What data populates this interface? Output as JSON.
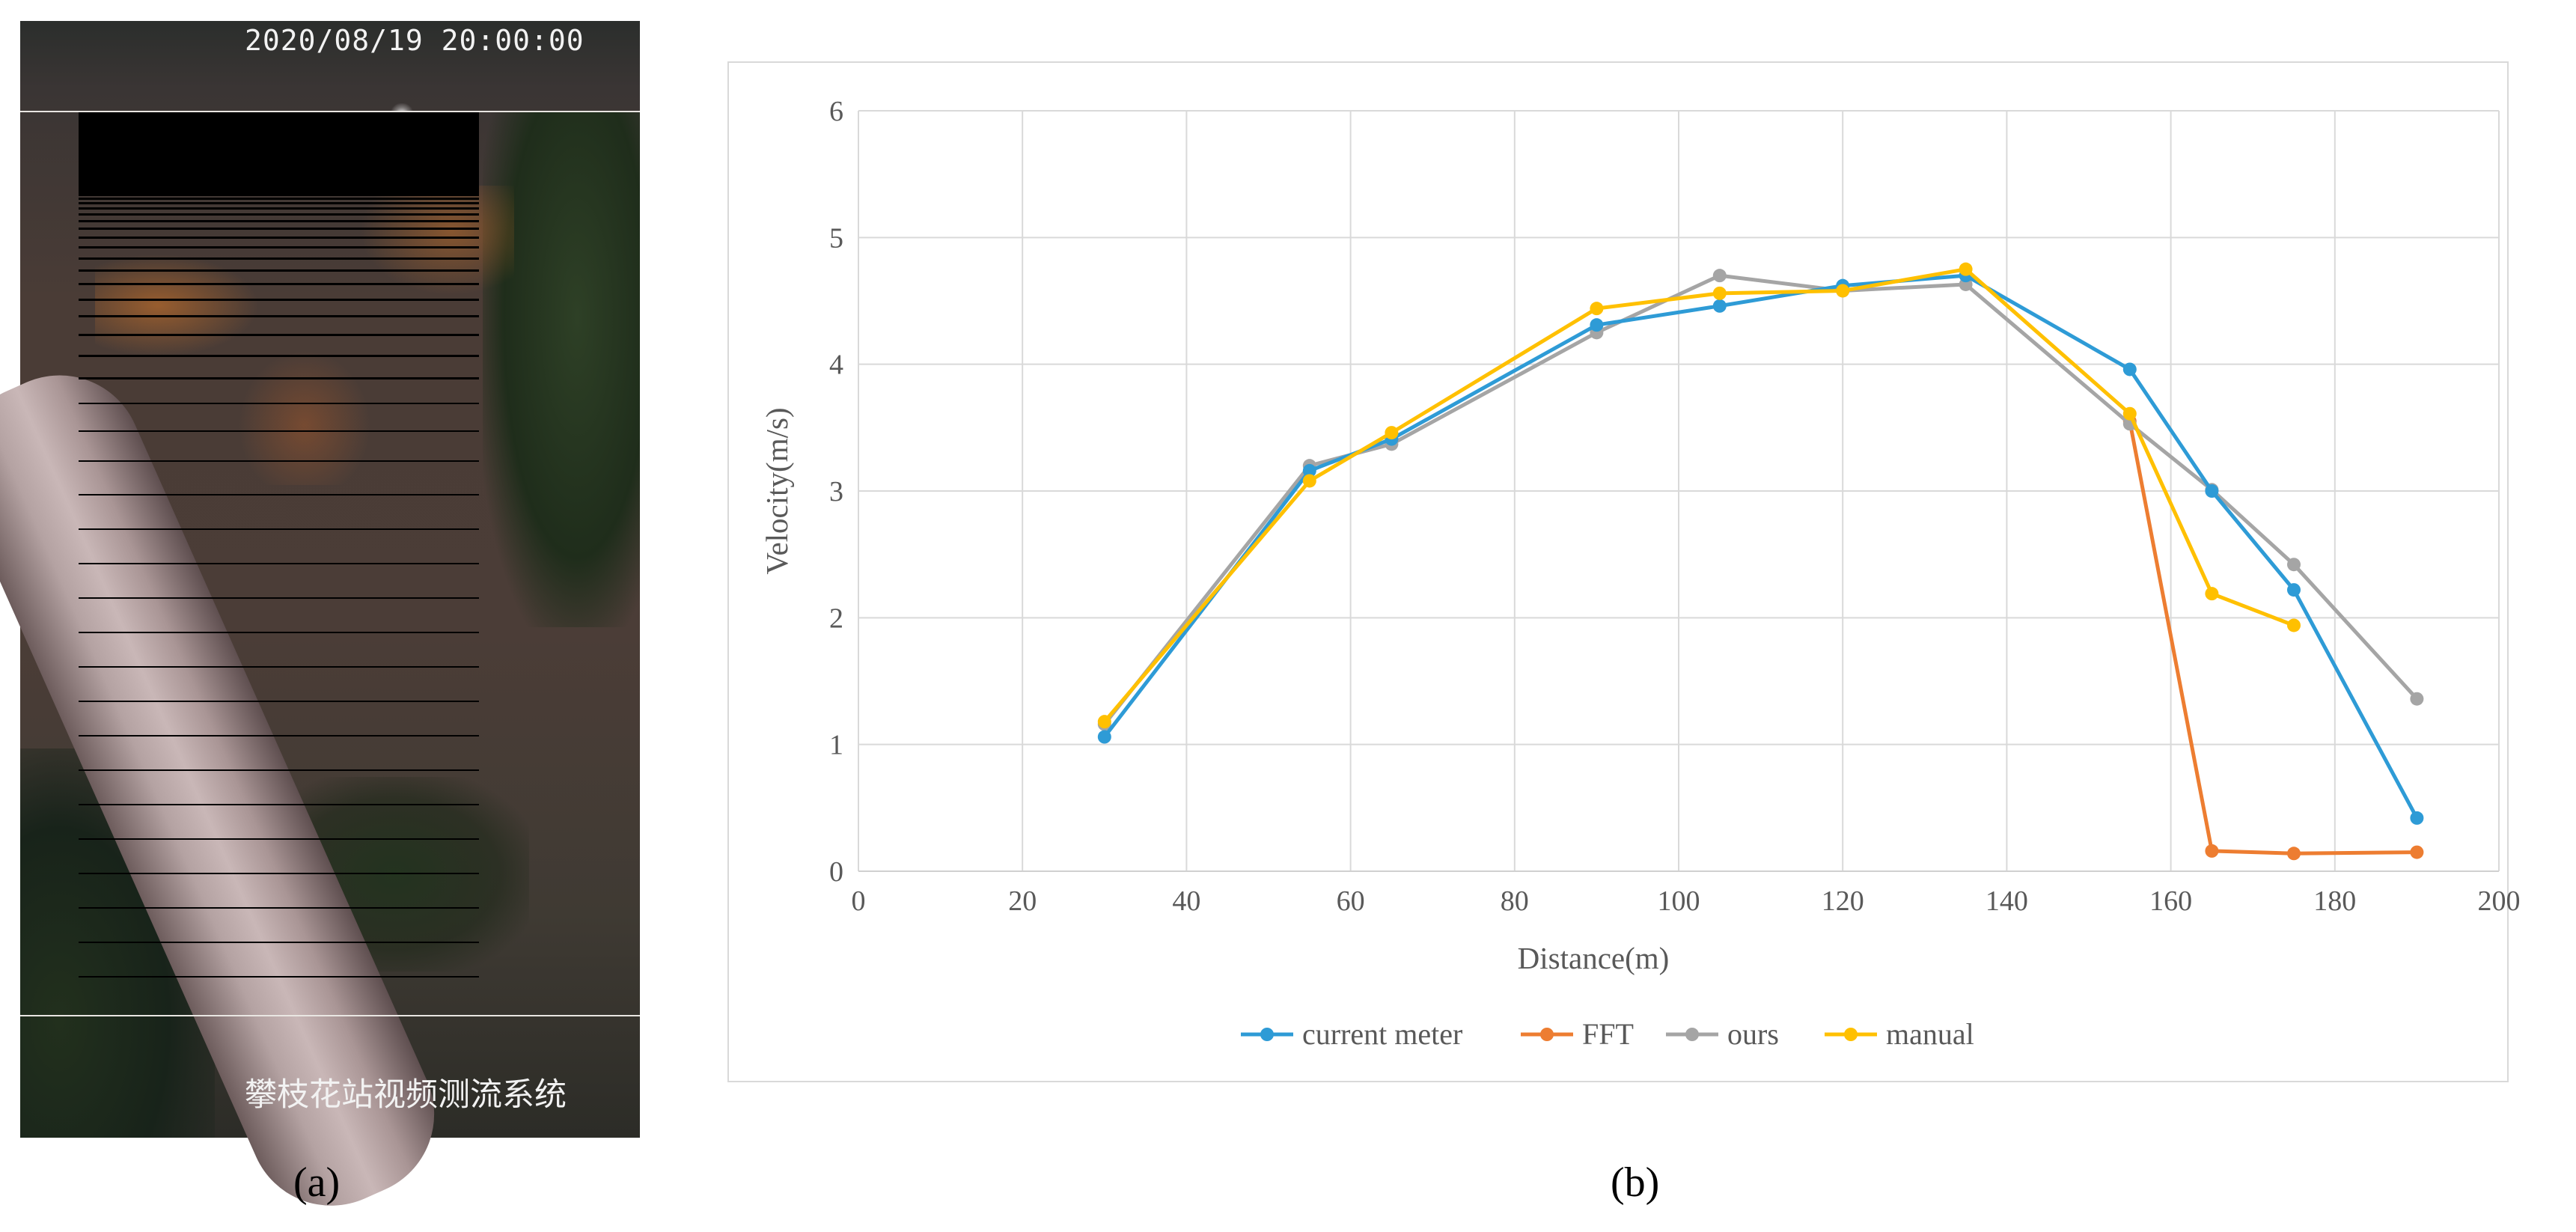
{
  "panel_a": {
    "timestamp": "2020/08/19 20:00:00",
    "caption": "攀枝花站视频测流系统",
    "label": "(a)"
  },
  "panel_b": {
    "label": "(b)"
  },
  "colors": {
    "current meter": "#2e9bd6",
    "FFT": "#ed7d31",
    "ours": "#a5a5a5",
    "manual": "#ffc000"
  },
  "chart_data": {
    "type": "line",
    "title": "",
    "xlabel": "Distance(m)",
    "ylabel": "Velocity(m/s)",
    "xlim": [
      0,
      200
    ],
    "ylim": [
      0,
      6
    ],
    "xticks": [
      0,
      20,
      40,
      60,
      80,
      100,
      120,
      140,
      160,
      180,
      200
    ],
    "yticks": [
      0,
      1,
      2,
      3,
      4,
      5,
      6
    ],
    "grid": true,
    "legend_position": "bottom",
    "series": [
      {
        "name": "current meter",
        "x": [
          30,
          55,
          65,
          90,
          105,
          120,
          135,
          155,
          165,
          175,
          190
        ],
        "y": [
          1.06,
          3.16,
          3.41,
          4.31,
          4.46,
          4.62,
          4.7,
          3.96,
          3.0,
          2.22,
          0.42
        ]
      },
      {
        "name": "FFT",
        "x": [
          155,
          165,
          175,
          190
        ],
        "y": [
          3.55,
          0.16,
          0.14,
          0.15
        ]
      },
      {
        "name": "ours",
        "x": [
          30,
          55,
          65,
          90,
          105,
          120,
          135,
          155,
          165,
          175,
          190
        ],
        "y": [
          1.16,
          3.2,
          3.37,
          4.25,
          4.7,
          4.58,
          4.63,
          3.53,
          3.01,
          2.42,
          1.36
        ]
      },
      {
        "name": "manual",
        "x": [
          30,
          55,
          65,
          90,
          105,
          120,
          135,
          155,
          165,
          175
        ],
        "y": [
          1.18,
          3.08,
          3.46,
          4.44,
          4.56,
          4.58,
          4.75,
          3.61,
          2.19,
          1.94
        ]
      }
    ]
  }
}
